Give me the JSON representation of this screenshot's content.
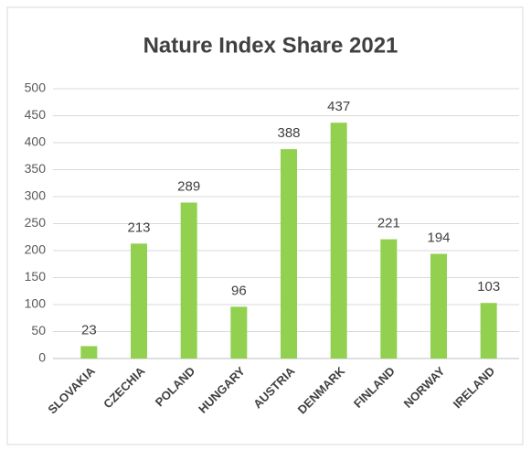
{
  "chart_data": {
    "type": "bar",
    "title": "Nature Index Share 2021",
    "categories": [
      "SLOVAKIA",
      "CZECHIA",
      "POLAND",
      "HUNGARY",
      "AUSTRIA",
      "DENMARK",
      "FINLAND",
      "NORWAY",
      "IRELAND"
    ],
    "values": [
      23,
      213,
      289,
      96,
      388,
      437,
      221,
      194,
      103
    ],
    "color": "#92d050",
    "ylim": [
      0,
      500
    ],
    "yticks": [
      0,
      50,
      100,
      150,
      200,
      250,
      300,
      350,
      400,
      450,
      500
    ],
    "grid": true
  }
}
